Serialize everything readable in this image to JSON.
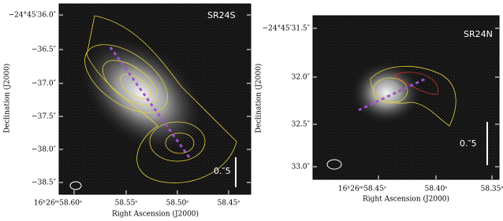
{
  "panels": [
    {
      "label": "SR24S",
      "y_title": "Declination (J2000)",
      "x_title": "Right Ascension (J2000)",
      "yticks": [
        "−24°45′36.0″",
        "−36.5″",
        "−37.0″",
        "−37.5″",
        "−38.0″",
        "−38.5″"
      ],
      "xticks": [
        "16ʰ26ᵐ58.60ˢ",
        "58.55ˢ",
        "58.50ˢ",
        "58.45ˢ"
      ],
      "scale_label": "0.″5"
    },
    {
      "label": "SR24N",
      "y_title": "Declination (J2000)",
      "x_title": "Right Ascension (J2000)",
      "yticks": [
        "−24°45′31.5″",
        "32.0″",
        "32.5″",
        "33.0″"
      ],
      "xticks": [
        "16ʰ26ᵐ58.45ˢ",
        "58.40ˢ",
        "58.35ˢ"
      ],
      "scale_label": "0.″5"
    }
  ]
}
